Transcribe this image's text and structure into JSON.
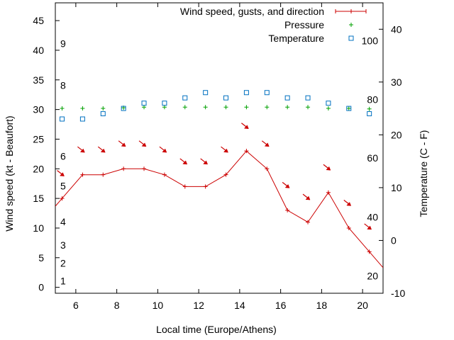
{
  "chart_data": {
    "type": "line",
    "title": "",
    "xlabel": "Local time (Europe/Athens)",
    "ylabel": "Wind speed (kt - Beaufort)",
    "y2label": "Temperature (C - F)",
    "xlim": [
      5,
      21
    ],
    "ylim": [
      -1,
      48
    ],
    "y2lim": [
      -10,
      45
    ],
    "x_ticks": [
      6,
      8,
      10,
      12,
      14,
      16,
      18,
      20
    ],
    "y_ticks": [
      0,
      5,
      10,
      15,
      20,
      25,
      30,
      35,
      40,
      45
    ],
    "y2_ticks": [
      -10,
      0,
      10,
      20,
      30,
      40
    ],
    "grid": false,
    "legend_position": "top-right",
    "beaufort_labels": [
      {
        "label": "1",
        "y": 1.1
      },
      {
        "label": "2",
        "y": 4.1
      },
      {
        "label": "3",
        "y": 7.1
      },
      {
        "label": "4",
        "y": 11.1
      },
      {
        "label": "5",
        "y": 17.1
      },
      {
        "label": "6",
        "y": 22.1
      },
      {
        "label": "8",
        "y": 34.1
      },
      {
        "label": "9",
        "y": 41.1
      }
    ],
    "fahrenheit_labels": [
      {
        "label": "20",
        "y2": -6.7
      },
      {
        "label": "40",
        "y2": 4.4
      },
      {
        "label": "60",
        "y2": 15.6
      },
      {
        "label": "80",
        "y2": 26.7
      },
      {
        "label": "100",
        "y2": 37.8
      }
    ],
    "series": [
      {
        "name": "Wind speed, gusts, and direction",
        "color": "#cc0000",
        "x": [
          5.33,
          6.33,
          7.33,
          8.33,
          9.33,
          10.33,
          11.33,
          12.33,
          13.33,
          14.33,
          15.33,
          16.33,
          17.33,
          18.33,
          19.33,
          20.33
        ],
        "y": [
          15,
          19,
          19,
          20,
          20,
          19,
          17,
          17,
          19,
          23,
          20,
          13,
          11,
          16,
          10,
          6
        ],
        "gusts_y": [
          19,
          23,
          23,
          24,
          24,
          23,
          21,
          21,
          23,
          27,
          24,
          17,
          15,
          20,
          14,
          10
        ]
      },
      {
        "name": "Pressure",
        "color": "#00a000",
        "x": [
          5.33,
          6.33,
          7.33,
          8.33,
          9.33,
          10.33,
          11.33,
          12.33,
          13.33,
          14.33,
          15.33,
          16.33,
          17.33,
          18.33,
          19.33,
          20.33
        ],
        "y": [
          30.2,
          30.2,
          30.2,
          30.3,
          30.4,
          30.4,
          30.4,
          30.4,
          30.4,
          30.4,
          30.4,
          30.4,
          30.4,
          30.2,
          30.2,
          30.1
        ]
      },
      {
        "name": "Temperature",
        "color": "#0070c0",
        "x": [
          5.33,
          6.33,
          7.33,
          8.33,
          9.33,
          10.33,
          11.33,
          12.33,
          13.33,
          14.33,
          15.33,
          16.33,
          17.33,
          18.33,
          19.33,
          20.33
        ],
        "y2": [
          23,
          23,
          24,
          25,
          26,
          26,
          27,
          28,
          27,
          28,
          28,
          27,
          27,
          26,
          25,
          24
        ]
      }
    ]
  }
}
